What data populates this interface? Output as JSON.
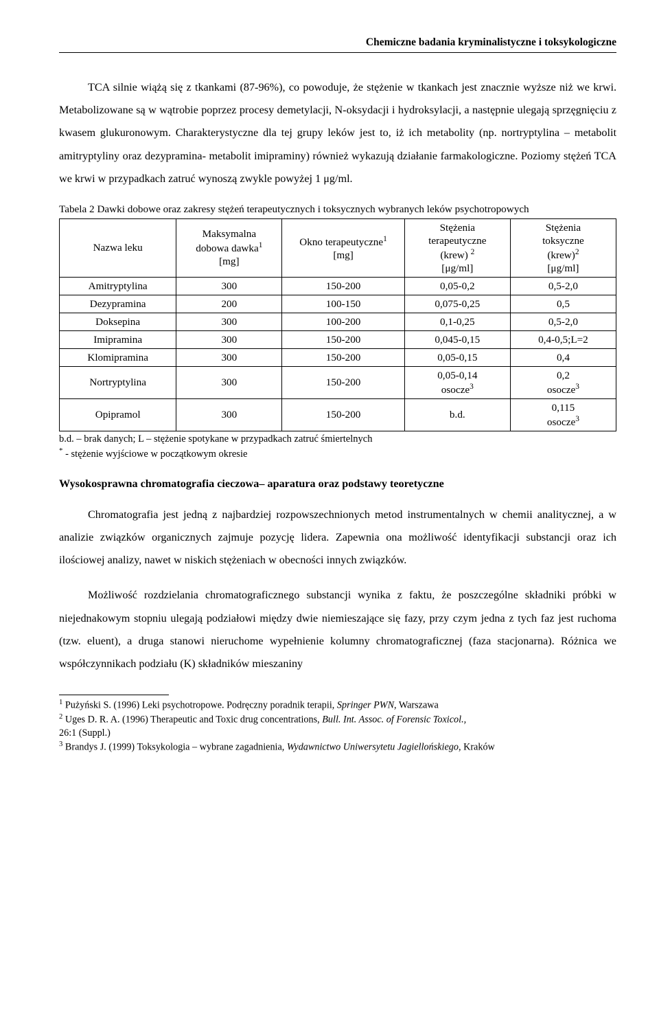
{
  "header": "Chemiczne badania kryminalistyczne i toksykologiczne",
  "para1_indent": "TCA silnie wiążą się z tkankami (87-96%), co powoduje, że stężenie w tkankach jest znacznie wyższe niż we krwi. Metabolizowane są w wątrobie poprzez procesy demetylacji, N-oksydacji i hydroksylacji, a następnie ulegają sprzęgnięciu z kwasem glukuronowym. Charakterystyczne dla tej grupy leków jest to, iż ich metabolity (np. nortryptylina – metabolit amitryptyliny oraz dezypramina- metabolit imipraminy) również wykazują działanie farmakologiczne. Poziomy stężeń TCA we krwi w przypadkach zatruć wynoszą zwykle powyżej 1 μg/ml.",
  "table_caption": "Tabela 2 Dawki dobowe oraz zakresy stężeń terapeutycznych i toksycznych wybranych leków psychotropowych",
  "table": {
    "head": {
      "c0": "Nazwa leku",
      "c1a": "Maksymalna",
      "c1b": "dobowa dawka",
      "c1c": "[mg]",
      "c2a": "Okno terapeutyczne",
      "c2b": "[mg]",
      "c3a": "Stężenia",
      "c3b": "terapeutyczne",
      "c3c": "(krew) ",
      "c3d": "[μg/ml]",
      "c4a": "Stężenia",
      "c4b": "toksyczne",
      "c4c": "(krew)",
      "c4d": "[μg/ml]"
    },
    "rows": [
      {
        "name": "Amitryptylina",
        "dose": "300",
        "window": "150-200",
        "ther": "0,05-0,2",
        "tox": "0,5-2,0"
      },
      {
        "name": "Dezypramina",
        "dose": "200",
        "window": "100-150",
        "ther": "0,075-0,25",
        "tox": "0,5"
      },
      {
        "name": "Doksepina",
        "dose": "300",
        "window": "100-200",
        "ther": "0,1-0,25",
        "tox": "0,5-2,0"
      },
      {
        "name": "Imipramina",
        "dose": "300",
        "window": "150-200",
        "ther": "0,045-0,15",
        "tox": "0,4-0,5;L=2"
      },
      {
        "name": "Klomipramina",
        "dose": "300",
        "window": "150-200",
        "ther": "0,05-0,15",
        "tox": "0,4"
      }
    ],
    "row_nortr": {
      "name": "Nortryptylina",
      "dose": "300",
      "window": "150-200",
      "ther_a": "0,05-0,14",
      "ther_b": "osocze",
      "tox_a": "0,2",
      "tox_b": "osocze"
    },
    "row_opip": {
      "name": "Opipramol",
      "dose": "300",
      "window": "150-200",
      "ther": "b.d.",
      "tox_a": "0,115",
      "tox_b": "osocze"
    }
  },
  "table_note1": "b.d. – brak danych; L – stężenie spotykane w przypadkach zatruć śmiertelnych",
  "table_note2": " - stężenie wyjściowe w początkowym okresie",
  "section_title": "Wysokosprawna chromatografia cieczowa– aparatura oraz podstawy teoretyczne",
  "para2": "Chromatografia jest jedną z najbardziej rozpowszechnionych metod instrumentalnych w chemii analitycznej, a w analizie związków organicznych zajmuje pozycję lidera. Zapewnia ona możliwość identyfikacji substancji oraz ich ilościowej analizy, nawet w niskich stężeniach w obecności innych związków.",
  "para3": "Możliwość rozdzielania chromatograficznego substancji wynika z faktu, że poszczególne składniki próbki w niejednakowym stopniu ulegają podziałowi między dwie niemieszające się fazy, przy czym jedna z tych faz jest ruchoma (tzw. eluent), a druga stanowi nieruchome wypełnienie kolumny chromatograficznej (faza stacjonarna). Różnica we współczynnikach podziału (K) składników mieszaniny",
  "footnotes": {
    "f1a": " Pużyński S. (1996) Leki psychotropowe. Podręczny poradnik terapii, ",
    "f1b": "Springer PWN",
    "f1c": ", Warszawa",
    "f2a": " Uges D. R. A. (1996) Therapeutic and Toxic drug concentrations, ",
    "f2b": "Bull. Int. Assoc. of Forensic Toxicol.,",
    "f2c": "26:1 (Suppl.)",
    "f3a": " Brandys J. (1999) Toksykologia – wybrane zagadnienia, ",
    "f3b": "Wydawnictwo Uniwersytetu Jagiellońskiego",
    "f3c": ", Kraków"
  }
}
